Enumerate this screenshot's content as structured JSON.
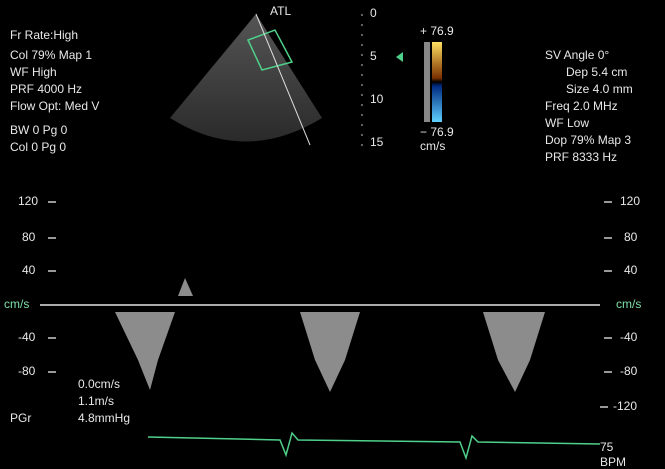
{
  "probe": "ATL",
  "left_panel": [
    "Fr Rate:High",
    "Col 79%  Map 1",
    "WF High",
    "PRF 4000  Hz",
    "Flow Opt: Med V",
    "BW 0   Pg 0",
    "Col 0    Pg 0"
  ],
  "depth_scale": [
    "0",
    "5",
    "10",
    "15"
  ],
  "color_bar": {
    "max": "+ 76.9",
    "min": "− 76.9",
    "unit": "cm/s"
  },
  "right_panel": [
    "SV Angle 0°",
    "Dep 5.4  cm",
    "Size 4.0  mm",
    "Freq 2.0  MHz",
    "WF Low",
    "Dop 79%  Map 3",
    "PRF 8333  Hz"
  ],
  "left_axis": [
    "120",
    "80",
    "40",
    "cm/s",
    "-40",
    "-80"
  ],
  "right_axis": [
    "120",
    "80",
    "40",
    "cm/s",
    "-40",
    "-80",
    "-120"
  ],
  "measurements": [
    "0.0cm/s",
    "1.1m/s",
    "4.8mmHg"
  ],
  "measurement_label": "PGr",
  "heart_rate": {
    "value": "75",
    "unit": "BPM"
  }
}
